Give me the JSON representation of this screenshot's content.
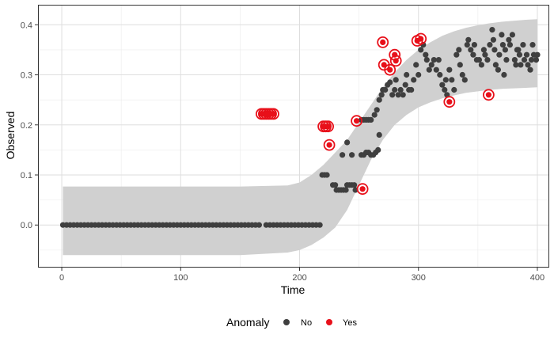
{
  "chart_data": {
    "type": "scatter",
    "xlabel": "Time",
    "ylabel": "Observed",
    "xlim": [
      -20,
      410
    ],
    "ylim": [
      -0.085,
      0.44
    ],
    "x_ticks": [
      0,
      100,
      200,
      300,
      400
    ],
    "y_ticks": [
      0.0,
      0.1,
      0.2,
      0.3,
      0.4
    ],
    "grid": true,
    "legend": {
      "title": "Anomaly",
      "placement": "bottom",
      "entries": [
        {
          "label": "No",
          "color": "#3f3f3f"
        },
        {
          "label": "Yes",
          "color": "#e8101a"
        }
      ]
    },
    "band": {
      "color": "#d0d0d0",
      "x": [
        1,
        50,
        100,
        150,
        190,
        200,
        210,
        220,
        230,
        240,
        250,
        260,
        270,
        280,
        290,
        300,
        310,
        320,
        330,
        340,
        350,
        360,
        370,
        380,
        390,
        400
      ],
      "upper": [
        0.077,
        0.077,
        0.077,
        0.077,
        0.079,
        0.085,
        0.1,
        0.12,
        0.145,
        0.17,
        0.205,
        0.24,
        0.275,
        0.305,
        0.33,
        0.35,
        0.365,
        0.378,
        0.387,
        0.394,
        0.399,
        0.403,
        0.406,
        0.408,
        0.41,
        0.411
      ],
      "lower": [
        -0.06,
        -0.06,
        -0.06,
        -0.06,
        -0.055,
        -0.05,
        -0.04,
        -0.025,
        -0.005,
        0.03,
        0.08,
        0.13,
        0.17,
        0.2,
        0.22,
        0.235,
        0.245,
        0.253,
        0.259,
        0.264,
        0.267,
        0.27,
        0.272,
        0.273,
        0.274,
        0.275
      ]
    },
    "series": [
      {
        "name": "No",
        "color": "#3f3f3f",
        "points": [
          [
            1,
            0
          ],
          [
            4,
            0
          ],
          [
            7,
            0
          ],
          [
            10,
            0
          ],
          [
            13,
            0
          ],
          [
            16,
            0
          ],
          [
            19,
            0
          ],
          [
            22,
            0
          ],
          [
            25,
            0
          ],
          [
            28,
            0
          ],
          [
            31,
            0
          ],
          [
            34,
            0
          ],
          [
            37,
            0
          ],
          [
            40,
            0
          ],
          [
            43,
            0
          ],
          [
            46,
            0
          ],
          [
            49,
            0
          ],
          [
            52,
            0
          ],
          [
            55,
            0
          ],
          [
            58,
            0
          ],
          [
            61,
            0
          ],
          [
            64,
            0
          ],
          [
            67,
            0
          ],
          [
            70,
            0
          ],
          [
            73,
            0
          ],
          [
            76,
            0
          ],
          [
            79,
            0
          ],
          [
            82,
            0
          ],
          [
            85,
            0
          ],
          [
            88,
            0
          ],
          [
            91,
            0
          ],
          [
            94,
            0
          ],
          [
            97,
            0
          ],
          [
            100,
            0
          ],
          [
            103,
            0
          ],
          [
            106,
            0
          ],
          [
            109,
            0
          ],
          [
            112,
            0
          ],
          [
            115,
            0
          ],
          [
            118,
            0
          ],
          [
            121,
            0
          ],
          [
            124,
            0
          ],
          [
            127,
            0
          ],
          [
            130,
            0
          ],
          [
            133,
            0
          ],
          [
            136,
            0
          ],
          [
            139,
            0
          ],
          [
            142,
            0
          ],
          [
            145,
            0
          ],
          [
            148,
            0
          ],
          [
            151,
            0
          ],
          [
            154,
            0
          ],
          [
            157,
            0
          ],
          [
            160,
            0
          ],
          [
            163,
            0
          ],
          [
            166,
            0
          ],
          [
            172,
            0
          ],
          [
            175,
            0
          ],
          [
            178,
            0
          ],
          [
            181,
            0
          ],
          [
            184,
            0
          ],
          [
            187,
            0
          ],
          [
            190,
            0
          ],
          [
            193,
            0
          ],
          [
            196,
            0
          ],
          [
            199,
            0
          ],
          [
            202,
            0
          ],
          [
            205,
            0
          ],
          [
            208,
            0
          ],
          [
            211,
            0
          ],
          [
            214,
            0
          ],
          [
            217,
            0
          ],
          [
            219,
            0.1
          ],
          [
            221,
            0.1
          ],
          [
            223,
            0.1
          ],
          [
            228,
            0.08
          ],
          [
            230,
            0.08
          ],
          [
            231,
            0.07
          ],
          [
            233,
            0.07
          ],
          [
            235,
            0.07
          ],
          [
            237,
            0.07
          ],
          [
            239,
            0.07
          ],
          [
            240,
            0.08
          ],
          [
            242,
            0.08
          ],
          [
            244,
            0.08
          ],
          [
            246,
            0.08
          ],
          [
            247,
            0.07
          ],
          [
            236,
            0.14
          ],
          [
            240,
            0.165
          ],
          [
            244,
            0.14
          ],
          [
            252,
            0.14
          ],
          [
            254,
            0.14
          ],
          [
            256,
            0.145
          ],
          [
            258,
            0.145
          ],
          [
            260,
            0.14
          ],
          [
            262,
            0.14
          ],
          [
            264,
            0.145
          ],
          [
            266,
            0.15
          ],
          [
            267,
            0.18
          ],
          [
            252,
            0.21
          ],
          [
            254,
            0.21
          ],
          [
            256,
            0.21
          ],
          [
            258,
            0.21
          ],
          [
            260,
            0.21
          ],
          [
            263,
            0.22
          ],
          [
            265,
            0.23
          ],
          [
            267,
            0.25
          ],
          [
            269,
            0.26
          ],
          [
            270,
            0.27
          ],
          [
            272,
            0.27
          ],
          [
            274,
            0.28
          ],
          [
            276,
            0.285
          ],
          [
            278,
            0.26
          ],
          [
            280,
            0.27
          ],
          [
            281,
            0.29
          ],
          [
            283,
            0.26
          ],
          [
            285,
            0.27
          ],
          [
            287,
            0.26
          ],
          [
            289,
            0.28
          ],
          [
            290,
            0.3
          ],
          [
            292,
            0.27
          ],
          [
            294,
            0.27
          ],
          [
            296,
            0.29
          ],
          [
            298,
            0.32
          ],
          [
            300,
            0.3
          ],
          [
            302,
            0.35
          ],
          [
            304,
            0.36
          ],
          [
            306,
            0.34
          ],
          [
            307,
            0.33
          ],
          [
            309,
            0.31
          ],
          [
            311,
            0.32
          ],
          [
            313,
            0.33
          ],
          [
            315,
            0.31
          ],
          [
            317,
            0.33
          ],
          [
            318,
            0.3
          ],
          [
            320,
            0.28
          ],
          [
            322,
            0.27
          ],
          [
            323,
            0.29
          ],
          [
            324,
            0.26
          ],
          [
            326,
            0.31
          ],
          [
            328,
            0.29
          ],
          [
            330,
            0.27
          ],
          [
            332,
            0.34
          ],
          [
            334,
            0.35
          ],
          [
            335,
            0.32
          ],
          [
            337,
            0.3
          ],
          [
            339,
            0.29
          ],
          [
            341,
            0.36
          ],
          [
            342,
            0.37
          ],
          [
            344,
            0.35
          ],
          [
            346,
            0.34
          ],
          [
            347,
            0.36
          ],
          [
            349,
            0.33
          ],
          [
            351,
            0.33
          ],
          [
            353,
            0.32
          ],
          [
            355,
            0.35
          ],
          [
            356,
            0.34
          ],
          [
            358,
            0.33
          ],
          [
            360,
            0.36
          ],
          [
            362,
            0.39
          ],
          [
            363,
            0.37
          ],
          [
            364,
            0.35
          ],
          [
            365,
            0.32
          ],
          [
            367,
            0.31
          ],
          [
            368,
            0.34
          ],
          [
            370,
            0.38
          ],
          [
            371,
            0.36
          ],
          [
            373,
            0.35
          ],
          [
            374,
            0.33
          ],
          [
            376,
            0.37
          ],
          [
            377,
            0.36
          ],
          [
            379,
            0.38
          ],
          [
            381,
            0.33
          ],
          [
            382,
            0.32
          ],
          [
            383,
            0.35
          ],
          [
            385,
            0.34
          ],
          [
            386,
            0.32
          ],
          [
            388,
            0.36
          ],
          [
            389,
            0.33
          ],
          [
            391,
            0.34
          ],
          [
            392,
            0.32
          ],
          [
            394,
            0.31
          ],
          [
            395,
            0.33
          ],
          [
            396,
            0.36
          ],
          [
            397,
            0.34
          ],
          [
            399,
            0.33
          ],
          [
            400,
            0.34
          ],
          [
            372,
            0.3
          ],
          [
            384,
            0.35
          ]
        ]
      },
      {
        "name": "Yes",
        "color": "#e8101a",
        "points": [
          [
            168,
            0.222
          ],
          [
            170,
            0.222
          ],
          [
            172,
            0.222
          ],
          [
            174,
            0.222
          ],
          [
            176,
            0.222
          ],
          [
            178,
            0.222
          ],
          [
            220,
            0.197
          ],
          [
            222,
            0.197
          ],
          [
            224,
            0.197
          ],
          [
            225,
            0.16
          ],
          [
            248,
            0.208
          ],
          [
            253,
            0.072
          ],
          [
            270,
            0.365
          ],
          [
            271,
            0.32
          ],
          [
            276,
            0.31
          ],
          [
            280,
            0.34
          ],
          [
            281,
            0.328
          ],
          [
            299,
            0.368
          ],
          [
            302,
            0.372
          ],
          [
            326,
            0.246
          ],
          [
            359,
            0.26
          ]
        ]
      }
    ]
  }
}
